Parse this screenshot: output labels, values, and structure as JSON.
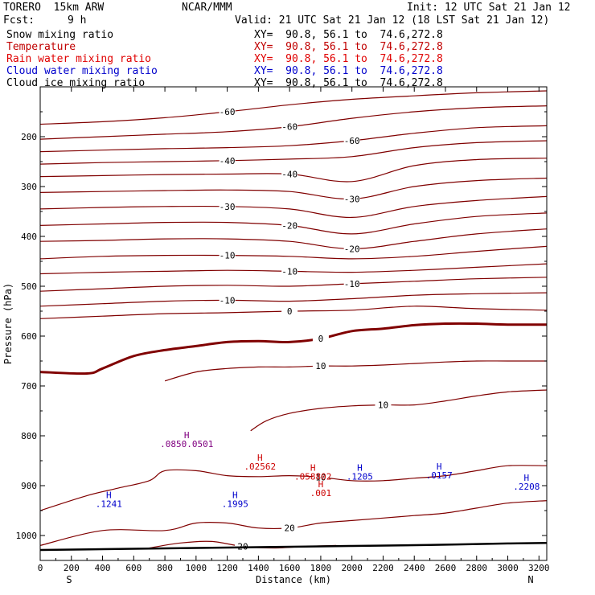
{
  "header": {
    "model": "TORERO  15km ARW",
    "center": "NCAR/MMM",
    "init": "Init: 12 UTC Sat 21 Jan 12",
    "fcst_label": "Fcst:",
    "fcst_value": "9 h",
    "valid": "Valid: 21 UTC Sat 21 Jan 12 (18 LST Sat 21 Jan 12)",
    "fields": [
      {
        "name": "Snow mixing ratio",
        "color": "#000000",
        "xy": "XY=  90.8, 56.1 to  74.6,272.8",
        "xy_color": "#000000"
      },
      {
        "name": "Temperature",
        "color": "#c00000",
        "xy": "XY=  90.8, 56.1 to  74.6,272.8",
        "xy_color": "#c00000"
      },
      {
        "name": "Rain water mixing ratio",
        "color": "#e00000",
        "xy": "XY=  90.8, 56.1 to  74.6,272.8",
        "xy_color": "#e00000"
      },
      {
        "name": "Cloud water mixing ratio",
        "color": "#0000cc",
        "xy": "XY=  90.8, 56.1 to  74.6,272.8",
        "xy_color": "#0000cc"
      },
      {
        "name": "Cloud ice mixing ratio",
        "color": "#000000",
        "xy": "XY=  90.8, 56.1 to  74.6,272.8",
        "xy_color": "#000000"
      }
    ]
  },
  "chart_data": {
    "type": "line",
    "xlabel": "Distance (km)",
    "ylabel": "Pressure (hPa)",
    "xlim": [
      0,
      3250
    ],
    "ylim": [
      1050,
      100
    ],
    "x_ticks": [
      0,
      200,
      400,
      600,
      800,
      1000,
      1200,
      1400,
      1600,
      1800,
      2000,
      2200,
      2400,
      2600,
      2800,
      3000,
      3200
    ],
    "y_ticks": [
      200,
      300,
      400,
      500,
      600,
      700,
      800,
      900,
      1000
    ],
    "x_end_labels": {
      "left": "S",
      "right": "N"
    },
    "colors": {
      "temperature": "#800000",
      "zero_line": "#800000",
      "cloud_water": "#0000cc",
      "rain": "#cc0000",
      "terrain": "#000000"
    },
    "temperature_contours": [
      {
        "label": "-60",
        "x": [
          0,
          400,
          800,
          1200,
          1600,
          2000,
          2400,
          2800,
          3250
        ],
        "y": [
          175,
          170,
          162,
          150,
          136,
          125,
          118,
          112,
          108
        ]
      },
      {
        "label": "-60",
        "x": [
          0,
          400,
          800,
          1200,
          1600,
          2000,
          2400,
          2800,
          3250
        ],
        "y": [
          205,
          200,
          195,
          190,
          180,
          163,
          150,
          142,
          138
        ]
      },
      {
        "label": "-60",
        "x": [
          0,
          400,
          800,
          1200,
          1600,
          2000,
          2400,
          2800,
          3250
        ],
        "y": [
          230,
          227,
          224,
          222,
          218,
          208,
          193,
          182,
          178
        ]
      },
      {
        "label": "-40",
        "x": [
          0,
          400,
          800,
          1200,
          1600,
          2000,
          2400,
          2800,
          3250
        ],
        "y": [
          255,
          252,
          250,
          248,
          245,
          240,
          222,
          212,
          208
        ]
      },
      {
        "label": "-40",
        "x": [
          0,
          400,
          800,
          1200,
          1600,
          2000,
          2400,
          2800,
          3250
        ],
        "y": [
          280,
          278,
          276,
          275,
          275,
          290,
          258,
          246,
          243
        ]
      },
      {
        "label": "-30",
        "x": [
          0,
          400,
          800,
          1200,
          1600,
          2000,
          2400,
          2800,
          3250
        ],
        "y": [
          312,
          310,
          308,
          307,
          310,
          325,
          300,
          288,
          283
        ]
      },
      {
        "label": "-30",
        "x": [
          0,
          400,
          800,
          1200,
          1600,
          2000,
          2400,
          2800,
          3250
        ],
        "y": [
          345,
          342,
          340,
          340,
          345,
          362,
          340,
          328,
          320
        ]
      },
      {
        "label": "-20",
        "x": [
          0,
          400,
          800,
          1200,
          1600,
          2000,
          2400,
          2800,
          3250
        ],
        "y": [
          378,
          375,
          372,
          372,
          378,
          395,
          375,
          360,
          353
        ]
      },
      {
        "label": "-20",
        "x": [
          0,
          400,
          800,
          1200,
          1600,
          2000,
          2400,
          2800,
          3250
        ],
        "y": [
          410,
          408,
          405,
          405,
          410,
          425,
          410,
          395,
          385
        ]
      },
      {
        "label": "-10",
        "x": [
          0,
          400,
          800,
          1200,
          1600,
          2000,
          2400,
          2800,
          3250
        ],
        "y": [
          445,
          440,
          438,
          438,
          440,
          445,
          440,
          430,
          420
        ]
      },
      {
        "label": "-10",
        "x": [
          0,
          400,
          800,
          1200,
          1600,
          2000,
          2400,
          2800,
          3250
        ],
        "y": [
          475,
          472,
          470,
          468,
          470,
          472,
          468,
          462,
          455
        ]
      },
      {
        "label": "-10",
        "x": [
          0,
          400,
          800,
          1200,
          1600,
          2000,
          2400,
          2800,
          3250
        ],
        "y": [
          510,
          505,
          500,
          498,
          500,
          495,
          490,
          485,
          482
        ]
      },
      {
        "label": "-10",
        "x": [
          0,
          400,
          800,
          1200,
          1600,
          2000,
          2400,
          2800,
          3250
        ],
        "y": [
          540,
          535,
          530,
          528,
          530,
          525,
          518,
          515,
          513
        ]
      },
      {
        "label": "0",
        "x": [
          0,
          400,
          800,
          1200,
          1600,
          2000,
          2400,
          2800,
          3250
        ],
        "y": [
          565,
          560,
          555,
          553,
          550,
          548,
          540,
          545,
          548
        ],
        "thin": true
      },
      {
        "label": "0",
        "x": [
          0,
          300,
          400,
          600,
          800,
          1000,
          1200,
          1400,
          1600,
          1800,
          2000,
          2200,
          2400,
          2600,
          2800,
          3000,
          3250
        ],
        "y": [
          672,
          675,
          665,
          640,
          628,
          620,
          612,
          610,
          612,
          605,
          590,
          585,
          578,
          575,
          575,
          577,
          577
        ],
        "bold": true
      },
      {
        "label": "10",
        "x": [
          800,
          1000,
          1200,
          1400,
          1600,
          1800,
          2000,
          2200,
          2400,
          2600,
          2800,
          3000,
          3250
        ],
        "y": [
          690,
          672,
          665,
          662,
          662,
          660,
          660,
          658,
          655,
          652,
          650,
          650,
          650
        ]
      },
      {
        "label": "10",
        "x": [
          1350,
          1450,
          1600,
          1800,
          2000,
          2200,
          2400,
          2600,
          2800,
          3000,
          3250
        ],
        "y": [
          790,
          770,
          755,
          745,
          740,
          738,
          738,
          730,
          720,
          712,
          708
        ]
      },
      {
        "label": "10",
        "x": [
          0,
          300,
          500,
          700,
          800,
          1000,
          1200,
          1400,
          1600,
          1800,
          2000,
          2200,
          2400,
          2600,
          2800,
          3000,
          3250
        ],
        "y": [
          950,
          920,
          905,
          890,
          870,
          870,
          880,
          882,
          880,
          883,
          890,
          890,
          885,
          880,
          870,
          860,
          860
        ]
      },
      {
        "label": "20",
        "x": [
          0,
          400,
          800,
          1000,
          1200,
          1400,
          1600,
          1800,
          2000,
          2200,
          2400,
          2600,
          2800,
          3000,
          3250
        ],
        "y": [
          1020,
          990,
          990,
          975,
          975,
          985,
          985,
          975,
          970,
          965,
          960,
          955,
          945,
          935,
          930
        ]
      },
      {
        "label": "20",
        "x": [
          700,
          900,
          1100,
          1300,
          1500,
          1700,
          1900
        ],
        "y": [
          1025,
          1015,
          1012,
          1022,
          1025,
          1022,
          1020
        ]
      }
    ],
    "terrain": {
      "x": [
        0,
        500,
        1000,
        1500,
        2000,
        2500,
        3000,
        3250
      ],
      "y": [
        1029,
        1027,
        1025,
        1023,
        1021,
        1019,
        1016,
        1015
      ]
    },
    "maxima_labels": [
      {
        "x": 940,
        "y": 805,
        "h_color": "#800080",
        "text": ".0850",
        "text2": ".0501"
      },
      {
        "x": 1410,
        "y": 850,
        "h_color": "#cc0000",
        "text": ".02562",
        "text2": ""
      },
      {
        "x": 1750,
        "y": 870,
        "h_color": "#cc0000",
        "text": ".058802",
        "text2": ""
      },
      {
        "x": 1800,
        "y": 903,
        "h_color": "#cc0000",
        "text": ".001",
        "text2": ""
      },
      {
        "x": 2050,
        "y": 870,
        "h_color": "#0000cc",
        "text": ".1205",
        "text2": ""
      },
      {
        "x": 2560,
        "y": 868,
        "h_color": "#0000cc",
        "text": ".0157",
        "text2": ""
      },
      {
        "x": 3120,
        "y": 890,
        "h_color": "#0000cc",
        "text": ".2208",
        "text2": ""
      },
      {
        "x": 440,
        "y": 925,
        "h_color": "#0000cc",
        "text": ".1241",
        "text2": ""
      },
      {
        "x": 1250,
        "y": 925,
        "h_color": "#0000cc",
        "text": ".1995",
        "text2": ""
      }
    ]
  }
}
